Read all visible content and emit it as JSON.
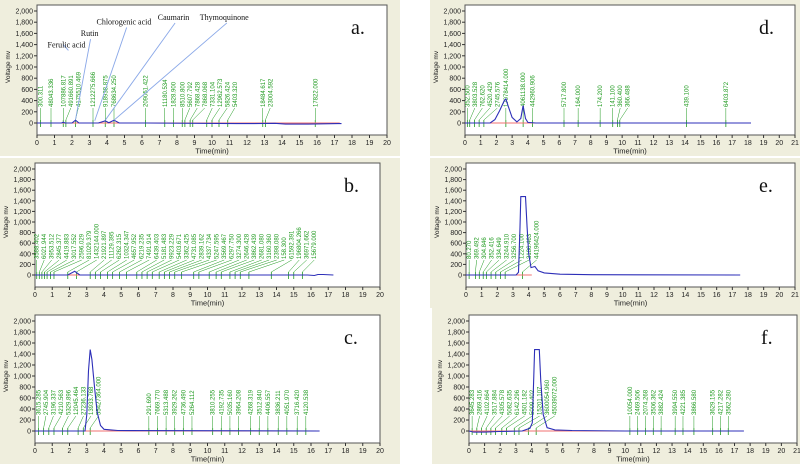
{
  "chart_data": [
    {
      "id": "a",
      "panel_label": "a.",
      "type": "line",
      "xlabel": "Time(min)",
      "ylabel": "Voltage mv",
      "xlim": [
        0,
        20
      ],
      "ylim": [
        0,
        2000
      ],
      "ytick_step": 200,
      "trace": [
        [
          0,
          0
        ],
        [
          1.4,
          0
        ],
        [
          1.5,
          15
        ],
        [
          1.6,
          0
        ],
        [
          2.0,
          0
        ],
        [
          2.2,
          50
        ],
        [
          2.4,
          0
        ],
        [
          3.5,
          0
        ],
        [
          3.9,
          40
        ],
        [
          4.1,
          5
        ],
        [
          4.4,
          50
        ],
        [
          4.7,
          0
        ],
        [
          6.2,
          0
        ],
        [
          11.4,
          -10
        ],
        [
          12.0,
          -10
        ],
        [
          13.6,
          -5
        ],
        [
          14.2,
          -20
        ],
        [
          15.5,
          -20
        ],
        [
          17.2,
          -10
        ],
        [
          17.4,
          -10
        ]
      ],
      "baseline_end": 17.3,
      "peak_labels": [
        [
          0.2,
          "300.311"
        ],
        [
          0.8,
          "48043.336"
        ],
        [
          1.5,
          "107886.817"
        ],
        [
          1.65,
          "491660.891"
        ],
        [
          2.2,
          "4175510.469"
        ],
        [
          3.2,
          "1212275.666"
        ],
        [
          3.9,
          "918938.875"
        ],
        [
          4.4,
          "768634.250"
        ],
        [
          6.2,
          "209051.422"
        ],
        [
          7.3,
          "11180.534"
        ],
        [
          7.8,
          "1828.900"
        ],
        [
          8.3,
          "8510.800"
        ],
        [
          8.45,
          "5607.792"
        ],
        [
          8.75,
          "7868.428"
        ],
        [
          8.9,
          "7868.068"
        ],
        [
          9.7,
          "7331.104"
        ],
        [
          10.0,
          "12962.573"
        ],
        [
          10.4,
          "5826.424"
        ],
        [
          10.9,
          "5403.320"
        ],
        [
          12.9,
          "18484.617"
        ],
        [
          13.05,
          "23004.592"
        ],
        [
          15.9,
          "17822.000"
        ]
      ],
      "annotations": [
        {
          "text": "Ferulic acid",
          "x": 1.5,
          "y": 1400,
          "tx": 0.6,
          "ty": 1350
        },
        {
          "text": "Rutin",
          "x": 2.2,
          "y": 60,
          "tx": 2.5,
          "ty": 1480
        },
        {
          "text": "Chlorogenic acid",
          "x": 3.3,
          "y": 40,
          "tx": 3.4,
          "ty": 1760
        },
        {
          "text": "Caumarin",
          "x": 3.9,
          "y": 50,
          "tx": 6.9,
          "ty": 1840
        },
        {
          "text": "Thymoquinone",
          "x": 4.4,
          "y": 50,
          "tx": 9.3,
          "ty": 1840
        }
      ]
    },
    {
      "id": "d",
      "panel_label": "d.",
      "type": "line",
      "xlabel": "Time(min)",
      "ylabel": "Voltage mv",
      "xlim": [
        0,
        21
      ],
      "ylim": [
        0,
        2000
      ],
      "ytick_step": 200,
      "trace": [
        [
          0,
          0
        ],
        [
          1.6,
          0
        ],
        [
          1.9,
          60
        ],
        [
          2.2,
          220
        ],
        [
          2.5,
          400
        ],
        [
          2.6,
          430
        ],
        [
          2.75,
          300
        ],
        [
          3.0,
          100
        ],
        [
          3.3,
          20
        ],
        [
          3.55,
          80
        ],
        [
          3.7,
          310
        ],
        [
          3.85,
          80
        ],
        [
          4.0,
          10
        ],
        [
          4.5,
          0
        ],
        [
          18.2,
          0
        ]
      ],
      "baseline_end": 17.2,
      "peak_labels": [
        [
          0.15,
          "352.500"
        ],
        [
          0.3,
          "3803.528"
        ],
        [
          0.6,
          "762.620"
        ],
        [
          0.9,
          "4520.429"
        ],
        [
          1.2,
          "2745.576"
        ],
        [
          2.6,
          "17078414.000"
        ],
        [
          3.7,
          "4061138.000"
        ],
        [
          4.3,
          "442960.906"
        ],
        [
          6.3,
          "5717.800"
        ],
        [
          7.2,
          "164.000"
        ],
        [
          8.6,
          "174.200"
        ],
        [
          9.4,
          "141.100"
        ],
        [
          9.7,
          "360.400"
        ],
        [
          9.85,
          "366.488"
        ],
        [
          14.1,
          "439.100"
        ],
        [
          16.6,
          "6403.872"
        ]
      ],
      "annotations": []
    },
    {
      "id": "b",
      "panel_label": "b.",
      "type": "line",
      "xlabel": "Time(min)",
      "ylabel": "Voltage mv",
      "xlim": [
        0,
        20
      ],
      "ylim": [
        0,
        2000
      ],
      "ytick_step": 200,
      "trace": [
        [
          0,
          0
        ],
        [
          1.9,
          0
        ],
        [
          2.3,
          70
        ],
        [
          2.6,
          0
        ],
        [
          15.8,
          0
        ],
        [
          16.2,
          -10
        ],
        [
          16.4,
          10
        ],
        [
          16.7,
          10
        ],
        [
          17.3,
          0
        ]
      ],
      "baseline_end": 15.7,
      "peak_labels": [
        [
          0.1,
          "3588.402"
        ],
        [
          0.25,
          "6021.944"
        ],
        [
          0.4,
          "3953.512"
        ],
        [
          0.55,
          "2845.377"
        ],
        [
          0.7,
          "4419.883"
        ],
        [
          0.9,
          "3017.552"
        ],
        [
          1.1,
          "2596.029"
        ],
        [
          1.9,
          "81029.379"
        ],
        [
          2.4,
          "1432144.000"
        ],
        [
          3.2,
          "21921.897"
        ],
        [
          3.5,
          "11129.395"
        ],
        [
          3.8,
          "6262.315"
        ],
        [
          4.2,
          "10324.347"
        ],
        [
          4.5,
          "4657.952"
        ],
        [
          4.9,
          "6219.235"
        ],
        [
          5.3,
          "7491.914"
        ],
        [
          5.9,
          "6439.403"
        ],
        [
          6.2,
          "5181.483"
        ],
        [
          6.5,
          "9923.229"
        ],
        [
          6.8,
          "5403.671"
        ],
        [
          7.2,
          "3362.425"
        ],
        [
          7.5,
          "4731.085"
        ],
        [
          7.8,
          "2839.162"
        ],
        [
          8.1,
          "4337.734"
        ],
        [
          8.5,
          "5247.595"
        ],
        [
          9.2,
          "3569.467"
        ],
        [
          9.5,
          "6297.750"
        ],
        [
          10.1,
          "3274.300"
        ],
        [
          10.5,
          "2646.428"
        ],
        [
          10.8,
          "3862.439"
        ],
        [
          11.3,
          "2681.080"
        ],
        [
          11.6,
          "3160.360"
        ],
        [
          11.9,
          "2398.080"
        ],
        [
          12.4,
          "158.300"
        ],
        [
          13.7,
          "61592.391"
        ],
        [
          14.7,
          "196804.266"
        ],
        [
          15.0,
          "36971.662"
        ],
        [
          15.5,
          "15679.000"
        ]
      ],
      "annotations": []
    },
    {
      "id": "e",
      "panel_label": "e.",
      "type": "line",
      "xlabel": "Time(min)",
      "ylabel": "Voltage mv",
      "xlim": [
        0,
        21
      ],
      "ylim": [
        0,
        2000
      ],
      "ytick_step": 200,
      "trace": [
        [
          0,
          0
        ],
        [
          3.2,
          0
        ],
        [
          3.35,
          50
        ],
        [
          3.45,
          900
        ],
        [
          3.5,
          1480
        ],
        [
          3.8,
          1480
        ],
        [
          3.9,
          900
        ],
        [
          4.0,
          400
        ],
        [
          4.15,
          140
        ],
        [
          4.4,
          160
        ],
        [
          4.6,
          80
        ],
        [
          5.0,
          40
        ],
        [
          6.0,
          15
        ],
        [
          8.0,
          5
        ],
        [
          17.5,
          0
        ]
      ],
      "baseline_end": 4.2,
      "peak_labels": [
        [
          0.2,
          "80.270"
        ],
        [
          0.6,
          "369.492"
        ],
        [
          0.85,
          "304.846"
        ],
        [
          1.1,
          "352.416"
        ],
        [
          1.3,
          "334.649"
        ],
        [
          1.6,
          "3244.910"
        ],
        [
          1.9,
          "3256.700"
        ],
        [
          2.2,
          "1224.100"
        ],
        [
          2.5,
          "3186.463"
        ],
        [
          3.6,
          "44196424.000"
        ]
      ],
      "annotations": []
    },
    {
      "id": "c",
      "panel_label": "c.",
      "type": "line",
      "xlabel": "Time(min)",
      "ylabel": "Voltage mv",
      "xlim": [
        0,
        20
      ],
      "ylim": [
        0,
        2000
      ],
      "ytick_step": 200,
      "trace": [
        [
          0,
          0
        ],
        [
          2.9,
          0
        ],
        [
          3.0,
          300
        ],
        [
          3.1,
          1100
        ],
        [
          3.2,
          1480
        ],
        [
          3.3,
          1300
        ],
        [
          3.45,
          800
        ],
        [
          3.6,
          350
        ],
        [
          3.8,
          100
        ],
        [
          4.0,
          30
        ],
        [
          4.8,
          10
        ],
        [
          16.5,
          0
        ]
      ],
      "baseline_end": 15.9,
      "peak_labels": [
        [
          0.2,
          "3615.285"
        ],
        [
          0.5,
          "2745.904"
        ],
        [
          0.8,
          "3196.337"
        ],
        [
          1.1,
          "4210.563"
        ],
        [
          1.6,
          "5329.896"
        ],
        [
          1.9,
          "12045.464"
        ],
        [
          2.5,
          "27236.133"
        ],
        [
          2.8,
          "13933.768"
        ],
        [
          3.2,
          "55427364.000"
        ],
        [
          6.6,
          "291.690"
        ],
        [
          7.1,
          "7669.770"
        ],
        [
          7.6,
          "5313.488"
        ],
        [
          8.1,
          "3929.262"
        ],
        [
          8.6,
          "4736.490"
        ],
        [
          9.1,
          "5264.112"
        ],
        [
          10.3,
          "3810.255"
        ],
        [
          10.8,
          "4192.735"
        ],
        [
          11.3,
          "5035.160"
        ],
        [
          11.8,
          "3964.208"
        ],
        [
          12.5,
          "4268.319"
        ],
        [
          13.0,
          "3512.840"
        ],
        [
          13.5,
          "4406.557"
        ],
        [
          14.1,
          "3836.211"
        ],
        [
          14.6,
          "4051.970"
        ],
        [
          15.2,
          "3716.420"
        ],
        [
          15.7,
          "4120.538"
        ]
      ],
      "annotations": []
    },
    {
      "id": "f",
      "panel_label": "f.",
      "type": "line",
      "xlabel": "Time(min)",
      "ylabel": "Voltage mv",
      "xlim": [
        0,
        21
      ],
      "ylim": [
        0,
        2000
      ],
      "ytick_step": 200,
      "trace": [
        [
          0,
          0
        ],
        [
          0.3,
          -20
        ],
        [
          1.0,
          -20
        ],
        [
          1.9,
          -10
        ],
        [
          3.4,
          0
        ],
        [
          3.9,
          50
        ],
        [
          4.05,
          150
        ],
        [
          4.15,
          1000
        ],
        [
          4.2,
          1480
        ],
        [
          4.5,
          1480
        ],
        [
          4.6,
          900
        ],
        [
          4.75,
          300
        ],
        [
          5.0,
          60
        ],
        [
          5.5,
          20
        ],
        [
          6.6,
          10
        ],
        [
          10.0,
          0
        ],
        [
          17.6,
          0
        ]
      ],
      "baseline_end": 17.0,
      "peak_labels": [
        [
          0.2,
          "3645.283"
        ],
        [
          0.5,
          "2869.416"
        ],
        [
          0.8,
          "4102.664"
        ],
        [
          1.1,
          "3517.884"
        ],
        [
          1.4,
          "4305.578"
        ],
        [
          1.7,
          "5082.635"
        ],
        [
          2.1,
          "6142.296"
        ],
        [
          2.4,
          "4501.182"
        ],
        [
          2.9,
          "5009.402"
        ],
        [
          3.2,
          "15201.107"
        ],
        [
          3.8,
          "3600054.960"
        ],
        [
          4.3,
          "45039072.000"
        ],
        [
          10.3,
          "10054.000"
        ],
        [
          10.8,
          "2469.506"
        ],
        [
          11.3,
          "2074.268"
        ],
        [
          11.8,
          "3506.362"
        ],
        [
          12.3,
          "3882.424"
        ],
        [
          13.2,
          "3994.550"
        ],
        [
          13.7,
          "4221.385"
        ],
        [
          14.4,
          "3866.580"
        ],
        [
          15.6,
          "3629.155"
        ],
        [
          16.1,
          "4217.282"
        ],
        [
          16.6,
          "3562.280"
        ]
      ],
      "annotations": []
    }
  ],
  "colors": {
    "trace": "#2d2fb8",
    "baseline": "#f07070",
    "label": "#1f9a1f",
    "panel_bg": "#efeedd",
    "annotation_line": "#8aa8e8"
  }
}
